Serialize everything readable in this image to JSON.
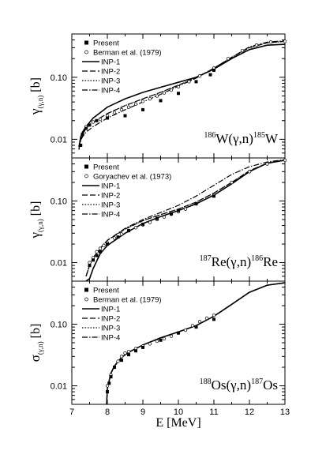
{
  "figure": {
    "xlabel": "E [MeV]",
    "x_ticks": [
      "7",
      "8",
      "9",
      "10",
      "11",
      "12",
      "13"
    ],
    "y_ticks": [
      "0.01",
      "0.10"
    ]
  },
  "chart_data": [
    {
      "type": "line",
      "ylabel_main": "γ",
      "ylabel_sub": "(γ,n)",
      "ylabel_unit": "[b]",
      "reaction": {
        "A1": "186",
        "lhs": "W(γ,n)",
        "A2": "185",
        "rhs": "W"
      },
      "legend_position": "top-left",
      "legend": [
        "Present",
        "Berman et al. (1979)",
        "INP-1",
        "INP-2",
        "INP-3",
        "INP-4"
      ],
      "xlim": [
        7,
        13
      ],
      "ylim": [
        0.005,
        0.5
      ],
      "yscale": "log",
      "x": [
        7.2,
        7.25,
        7.3,
        7.4,
        7.6,
        8.0,
        8.5,
        9.0,
        9.5,
        10.0,
        10.5,
        11.0,
        11.5,
        12.0,
        12.5,
        13.0
      ],
      "series": [
        {
          "name": "INP-1",
          "values": [
            0.0075,
            0.011,
            0.013,
            0.016,
            0.022,
            0.033,
            0.045,
            0.057,
            0.069,
            0.083,
            0.1,
            0.135,
            0.2,
            0.28,
            0.33,
            0.34
          ]
        },
        {
          "name": "INP-2",
          "values": [
            0.0068,
            0.01,
            0.012,
            0.015,
            0.019,
            0.026,
            0.035,
            0.045,
            0.057,
            0.075,
            0.098,
            0.14,
            0.21,
            0.3,
            0.36,
            0.38
          ]
        },
        {
          "name": "INP-3",
          "values": [
            0.0068,
            0.01,
            0.012,
            0.015,
            0.019,
            0.026,
            0.035,
            0.045,
            0.057,
            0.075,
            0.098,
            0.14,
            0.21,
            0.3,
            0.36,
            0.38
          ]
        },
        {
          "name": "INP-4",
          "values": [
            0.007,
            0.0095,
            0.011,
            0.013,
            0.016,
            0.022,
            0.03,
            0.04,
            0.053,
            0.072,
            0.097,
            0.14,
            0.21,
            0.31,
            0.37,
            0.39
          ]
        }
      ],
      "points_present": {
        "x": [
          7.25,
          7.3,
          7.4,
          7.5,
          7.7,
          8.0,
          8.5,
          9.0,
          9.5,
          10.0,
          10.5,
          10.9,
          11.0
        ],
        "y": [
          0.008,
          0.012,
          0.015,
          0.017,
          0.02,
          0.022,
          0.024,
          0.03,
          0.042,
          0.055,
          0.085,
          0.11,
          0.13
        ]
      },
      "points_reference": {
        "x": [
          7.3,
          7.4,
          7.6,
          7.8,
          8.0,
          8.2,
          8.4,
          8.6,
          8.8,
          9.0,
          9.2,
          9.4,
          9.6,
          9.8,
          10.0,
          10.3,
          10.6,
          11.0,
          11.4,
          11.8,
          12.2,
          12.6,
          13.0
        ],
        "y": [
          0.012,
          0.016,
          0.019,
          0.021,
          0.024,
          0.027,
          0.03,
          0.033,
          0.037,
          0.041,
          0.045,
          0.05,
          0.056,
          0.062,
          0.07,
          0.085,
          0.105,
          0.14,
          0.2,
          0.27,
          0.33,
          0.37,
          0.38
        ]
      }
    },
    {
      "type": "line",
      "ylabel_main": "γ",
      "ylabel_sub": "(γ,n)",
      "ylabel_unit": "[b]",
      "reaction": {
        "A1": "187",
        "lhs": "Re(γ,n)",
        "A2": "186",
        "rhs": "Re"
      },
      "legend_position": "top-left",
      "legend": [
        "Present",
        "Goryachev et al. (1973)",
        "INP-1",
        "INP-2",
        "INP-3",
        "INP-4"
      ],
      "xlim": [
        7,
        13
      ],
      "ylim": [
        0.005,
        0.5
      ],
      "yscale": "log",
      "x": [
        7.4,
        7.5,
        7.6,
        7.8,
        8.0,
        8.5,
        9.0,
        9.5,
        10.0,
        10.5,
        11.0,
        11.5,
        12.0,
        12.5,
        13.0
      ],
      "series": [
        {
          "name": "INP-1",
          "values": [
            0.005,
            0.0055,
            0.008,
            0.014,
            0.019,
            0.03,
            0.043,
            0.056,
            0.07,
            0.09,
            0.125,
            0.19,
            0.3,
            0.41,
            0.46
          ]
        },
        {
          "name": "INP-2",
          "values": [
            0.006,
            0.009,
            0.012,
            0.017,
            0.023,
            0.035,
            0.048,
            0.06,
            0.074,
            0.096,
            0.135,
            0.2,
            0.31,
            0.41,
            0.46
          ]
        },
        {
          "name": "INP-3",
          "values": [
            0.006,
            0.009,
            0.012,
            0.017,
            0.023,
            0.035,
            0.048,
            0.06,
            0.074,
            0.096,
            0.135,
            0.2,
            0.31,
            0.41,
            0.46
          ]
        },
        {
          "name": "INP-4",
          "values": [
            0.006,
            0.009,
            0.012,
            0.017,
            0.023,
            0.036,
            0.05,
            0.065,
            0.085,
            0.12,
            0.18,
            0.27,
            0.36,
            0.43,
            0.47
          ]
        }
      ],
      "points_present": {
        "x": [
          7.5,
          7.6,
          7.7,
          7.8,
          8.0,
          8.3,
          8.6,
          9.0,
          9.4,
          9.8,
          10.0,
          10.5,
          11.0
        ],
        "y": [
          0.009,
          0.011,
          0.013,
          0.015,
          0.02,
          0.026,
          0.033,
          0.042,
          0.052,
          0.062,
          0.07,
          0.09,
          0.12
        ]
      },
      "points_reference": {
        "x": [
          7.5,
          7.6,
          7.7,
          7.8,
          7.9,
          8.0,
          8.2,
          8.4,
          8.6,
          8.8,
          9.0,
          9.2,
          9.4,
          9.6,
          9.8,
          10.0,
          10.2,
          10.5,
          11.0,
          11.5,
          12.0,
          12.5,
          13.0
        ],
        "y": [
          0.01,
          0.012,
          0.015,
          0.017,
          0.019,
          0.021,
          0.025,
          0.029,
          0.033,
          0.037,
          0.041,
          0.045,
          0.05,
          0.055,
          0.061,
          0.067,
          0.074,
          0.09,
          0.125,
          0.2,
          0.3,
          0.4,
          0.46
        ]
      }
    },
    {
      "type": "line",
      "ylabel_main": "σ",
      "ylabel_sub": "(γ,n)",
      "ylabel_unit": "[b]",
      "reaction": {
        "A1": "188",
        "lhs": "Os(γ,n)",
        "A2": "187",
        "rhs": "Os"
      },
      "legend_position": "top-left",
      "legend": [
        "Present",
        "Berman et al. (1979)",
        "INP-1",
        "INP-2",
        "INP-3",
        "INP-4"
      ],
      "xlim": [
        7,
        13
      ],
      "ylim": [
        0.005,
        0.5
      ],
      "yscale": "log",
      "x": [
        7.98,
        8.0,
        8.1,
        8.2,
        8.4,
        8.6,
        9.0,
        9.5,
        10.0,
        10.5,
        11.0,
        11.5,
        12.0,
        12.5,
        13.0
      ],
      "series": [
        {
          "name": "INP-1",
          "values": [
            0.005,
            0.009,
            0.016,
            0.021,
            0.029,
            0.035,
            0.046,
            0.06,
            0.075,
            0.095,
            0.135,
            0.21,
            0.33,
            0.43,
            0.47
          ]
        },
        {
          "name": "INP-2",
          "values": [
            0.005,
            0.009,
            0.016,
            0.021,
            0.029,
            0.035,
            0.046,
            0.06,
            0.075,
            0.095,
            0.135,
            0.21,
            0.33,
            0.43,
            0.47
          ]
        },
        {
          "name": "INP-3",
          "values": [
            0.005,
            0.009,
            0.016,
            0.021,
            0.029,
            0.035,
            0.046,
            0.06,
            0.075,
            0.095,
            0.135,
            0.21,
            0.33,
            0.43,
            0.47
          ]
        },
        {
          "name": "INP-4",
          "values": [
            0.005,
            0.009,
            0.016,
            0.021,
            0.029,
            0.035,
            0.046,
            0.06,
            0.075,
            0.095,
            0.135,
            0.21,
            0.33,
            0.43,
            0.47
          ]
        }
      ],
      "points_present": {
        "x": [
          8.0,
          8.05,
          8.1,
          8.2,
          8.4,
          8.6,
          8.8,
          9.0,
          9.5,
          10.0,
          10.5,
          11.0
        ],
        "y": [
          0.008,
          0.011,
          0.014,
          0.02,
          0.026,
          0.032,
          0.037,
          0.042,
          0.055,
          0.072,
          0.09,
          0.12
        ]
      },
      "points_reference": {
        "x": [
          8.0,
          8.1,
          8.2,
          8.3,
          8.4,
          8.5,
          8.6,
          8.8,
          9.0,
          9.2,
          9.4,
          9.6,
          9.8,
          10.0,
          10.2,
          10.4,
          10.6,
          10.8,
          11.0
        ],
        "y": [
          0.01,
          0.015,
          0.02,
          0.025,
          0.03,
          0.034,
          0.036,
          0.04,
          0.044,
          0.048,
          0.053,
          0.058,
          0.064,
          0.072,
          0.08,
          0.095,
          0.11,
          0.125,
          0.14
        ]
      }
    }
  ]
}
